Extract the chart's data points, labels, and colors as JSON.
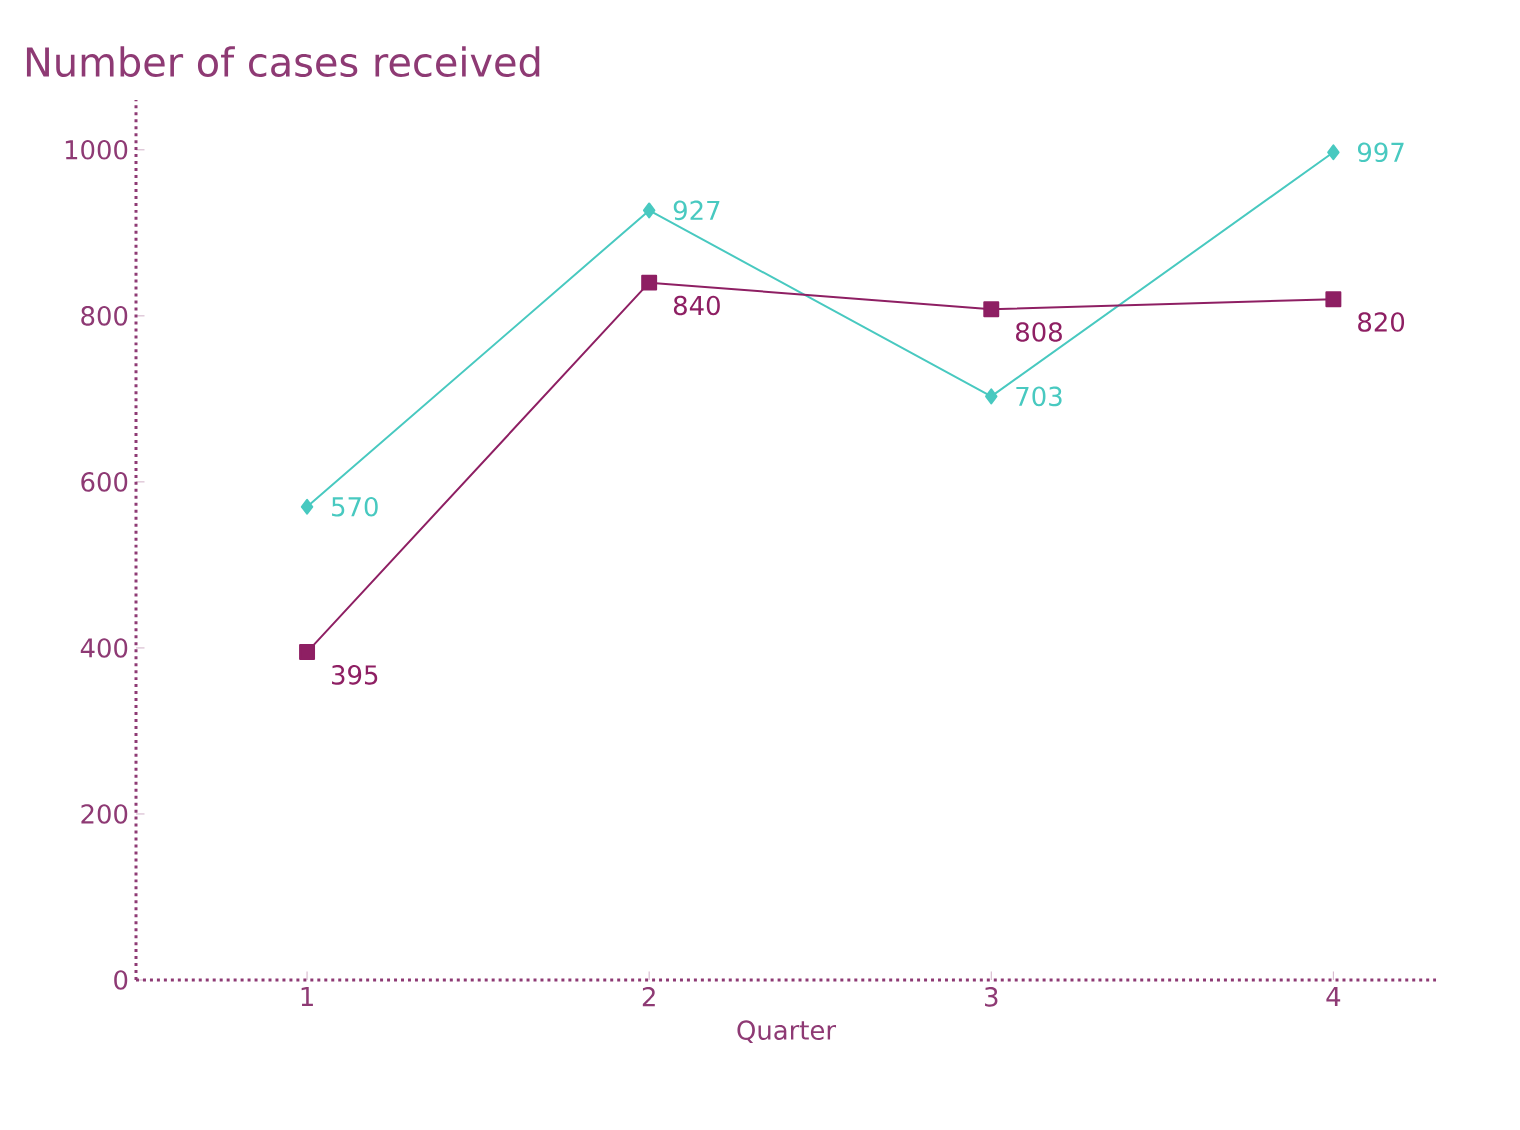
{
  "chart_data": {
    "type": "line",
    "title": "Number of cases received",
    "xlabel": "Quarter",
    "x": [
      1,
      2,
      3,
      4
    ],
    "xlim": [
      0.5,
      4.3
    ],
    "xticks": [
      1,
      2,
      3,
      4
    ],
    "ylim": [
      0,
      1060
    ],
    "yticks": [
      0,
      200,
      400,
      600,
      800,
      1000
    ],
    "series": [
      {
        "color": "#48c9c0",
        "marker": "diamond",
        "values": [
          570,
          927,
          703,
          997
        ]
      },
      {
        "color": "#8e1f63",
        "marker": "square",
        "values": [
          395,
          840,
          808,
          820
        ]
      }
    ],
    "data_labels": true,
    "grid": false
  }
}
